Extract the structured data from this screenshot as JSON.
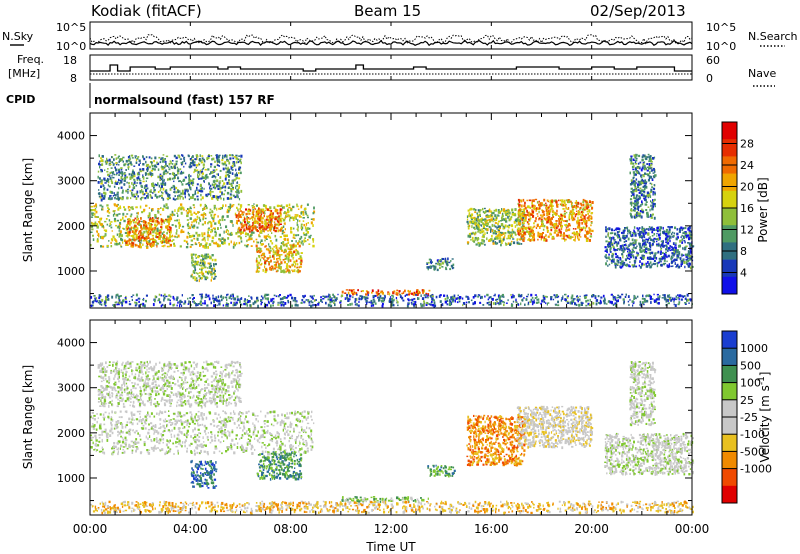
{
  "header": {
    "radar": "Kodiak (fitACF)",
    "beam": "Beam 15",
    "date": "02/Sep/2013"
  },
  "panels": {
    "nsky_label": "N.Sky",
    "nsearch_label": "N.Search",
    "noise_tick_top_left": "10^5",
    "noise_tick_bottom_left": "10^0",
    "noise_tick_top_right": "10^5",
    "noise_tick_bottom_right": "10^0",
    "freq_label_1": "Freq.",
    "freq_label_2": "[MHz]",
    "freq_tick_top": "18",
    "freq_tick_bottom": "8",
    "nave_label": "Nave",
    "nave_tick_top": "60",
    "nave_tick_bottom": "0",
    "cpid_label": "CPID",
    "cpid_value": "normalsound (fast) 157 RF"
  },
  "chart_data": [
    {
      "type": "heatmap",
      "name": "power",
      "xlabel": "Time UT",
      "ylabel": "Slant Range [km]",
      "x_unit": "hours UT",
      "xlim": [
        0,
        24
      ],
      "ylim": [
        180,
        4500
      ],
      "yticks": [
        1000,
        2000,
        3000,
        4000
      ],
      "ytick_labels": [
        "1000",
        "2000",
        "3000",
        "4000"
      ],
      "colorbar": {
        "label": "Power [dB]",
        "range": [
          0,
          32
        ],
        "ticks": [
          4,
          8,
          12,
          16,
          20,
          24,
          28
        ],
        "colors": [
          "#1010e8",
          "#1838b8",
          "#2f6f80",
          "#4f9a63",
          "#8fbf3a",
          "#d6d20e",
          "#f0a500",
          "#f06a00",
          "#e62e00",
          "#e00000"
        ]
      },
      "regions": [
        {
          "t0": 0.0,
          "t1": 8.9,
          "r0": 1550,
          "r1": 2500,
          "level": 16
        },
        {
          "t0": 1.4,
          "t1": 3.2,
          "r0": 1550,
          "r1": 2200,
          "level": 22
        },
        {
          "t0": 4.0,
          "t1": 5.0,
          "r0": 800,
          "r1": 1400,
          "level": 14
        },
        {
          "t0": 5.8,
          "t1": 7.6,
          "r0": 1900,
          "r1": 2400,
          "level": 24
        },
        {
          "t0": 6.6,
          "t1": 8.4,
          "r0": 1000,
          "r1": 1600,
          "level": 20
        },
        {
          "t0": 10.0,
          "t1": 13.5,
          "r0": 500,
          "r1": 600,
          "level": 26
        },
        {
          "t0": 13.4,
          "t1": 14.5,
          "r0": 1050,
          "r1": 1300,
          "level": 8
        },
        {
          "t0": 15.0,
          "t1": 17.3,
          "r0": 1600,
          "r1": 2400,
          "level": 14
        },
        {
          "t0": 17.0,
          "t1": 20.0,
          "r0": 1700,
          "r1": 2600,
          "level": 22
        },
        {
          "t0": 20.5,
          "t1": 24.0,
          "r0": 1100,
          "r1": 2000,
          "level": 6
        },
        {
          "t0": 0.0,
          "t1": 24.0,
          "r0": 250,
          "r1": 500,
          "level": 6
        },
        {
          "t0": 0.3,
          "t1": 6.0,
          "r0": 2600,
          "r1": 3600,
          "level": 10
        },
        {
          "t0": 21.5,
          "t1": 22.5,
          "r0": 2200,
          "r1": 3600,
          "level": 8
        }
      ]
    },
    {
      "type": "heatmap",
      "name": "velocity",
      "xlabel": "Time UT",
      "ylabel": "Slant Range [km]",
      "x_unit": "hours UT",
      "xlim": [
        0,
        24
      ],
      "ylim": [
        180,
        4500
      ],
      "xticks": [
        0,
        4,
        8,
        12,
        16,
        20,
        24
      ],
      "xtick_labels": [
        "00:00",
        "04:00",
        "08:00",
        "12:00",
        "16:00",
        "20:00",
        "00:00"
      ],
      "yticks": [
        1000,
        2000,
        3000,
        4000
      ],
      "ytick_labels": [
        "1000",
        "2000",
        "3000",
        "4000"
      ],
      "colorbar": {
        "label": "Velocity [m s^-1]",
        "ticks": [
          "1000",
          "500",
          "100",
          "25",
          "-25",
          "-100",
          "-500",
          "-1000"
        ],
        "colors": [
          "#1a3ed0",
          "#2a6aa0",
          "#3f9050",
          "#80c830",
          "#c8c8c8",
          "#c8c8c8",
          "#e8c020",
          "#f08a00",
          "#f04a00",
          "#e00000"
        ]
      },
      "regions": [
        {
          "t0": 0.0,
          "t1": 8.9,
          "r0": 1550,
          "r1": 2500,
          "level": 4
        },
        {
          "t0": 4.0,
          "t1": 5.0,
          "r0": 800,
          "r1": 1400,
          "level": 1
        },
        {
          "t0": 6.6,
          "t1": 8.4,
          "r0": 1000,
          "r1": 1600,
          "level": 2
        },
        {
          "t0": 10.0,
          "t1": 13.5,
          "r0": 500,
          "r1": 600,
          "level": 3
        },
        {
          "t0": 13.4,
          "t1": 14.5,
          "r0": 1050,
          "r1": 1300,
          "level": 2
        },
        {
          "t0": 15.0,
          "t1": 17.3,
          "r0": 1300,
          "r1": 2400,
          "level": 7
        },
        {
          "t0": 17.0,
          "t1": 20.0,
          "r0": 1700,
          "r1": 2600,
          "level": 5
        },
        {
          "t0": 20.5,
          "t1": 24.0,
          "r0": 1100,
          "r1": 2000,
          "level": 4
        },
        {
          "t0": 0.0,
          "t1": 24.0,
          "r0": 250,
          "r1": 500,
          "level": 6
        },
        {
          "t0": 0.3,
          "t1": 6.0,
          "r0": 2600,
          "r1": 3600,
          "level": 4
        },
        {
          "t0": 21.5,
          "t1": 22.5,
          "r0": 2200,
          "r1": 3600,
          "level": 4
        }
      ]
    }
  ]
}
